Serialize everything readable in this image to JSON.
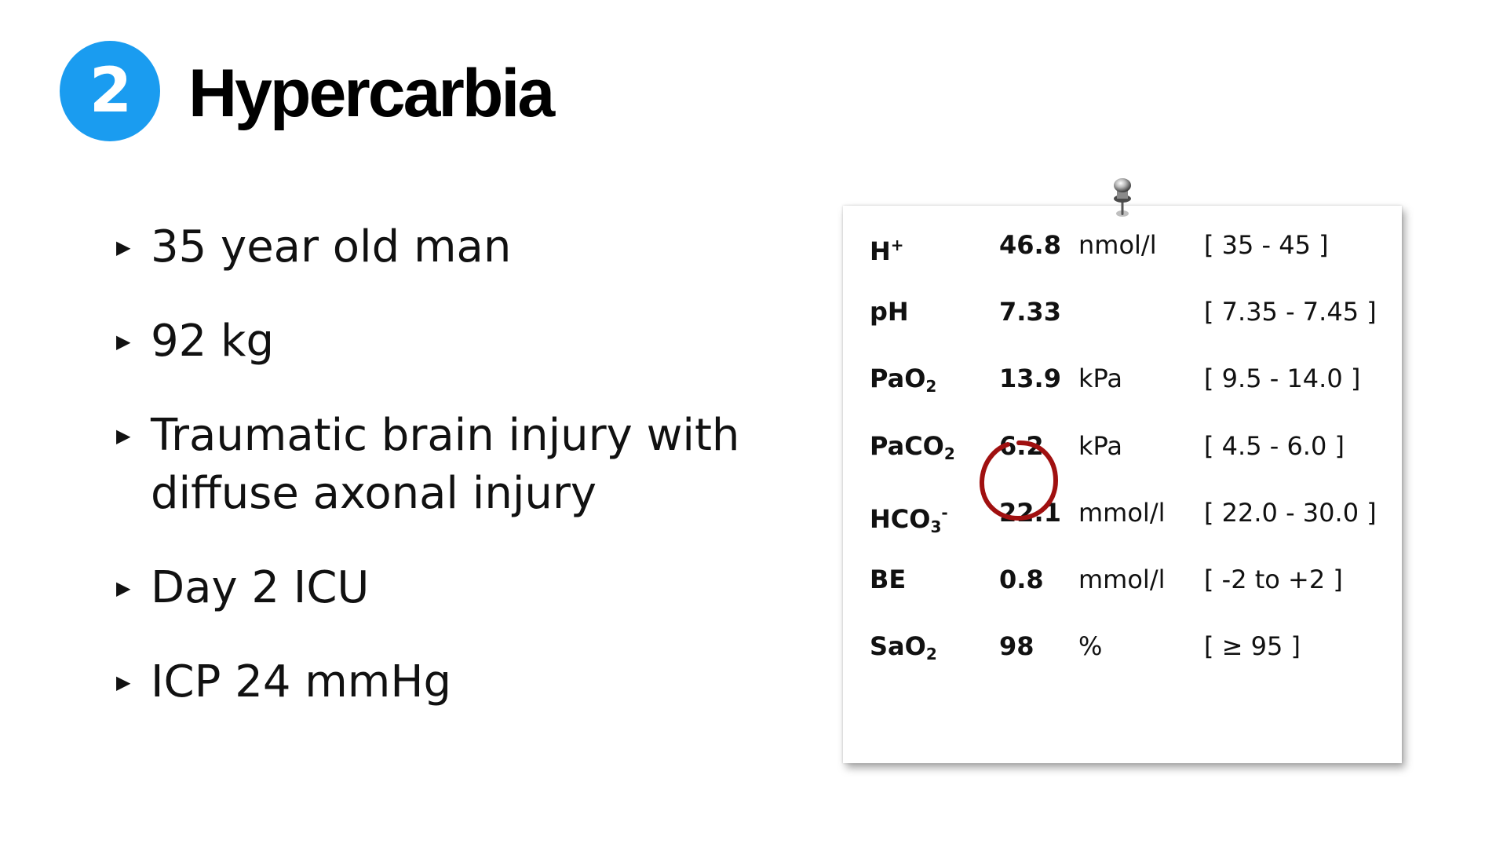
{
  "header": {
    "number": "2",
    "title": "Hypercarbia"
  },
  "bullets": [
    "35 year old man",
    "92 kg",
    "Traumatic brain injury with diffuse axonal injury",
    "Day 2 ICU",
    "ICP 24 mmHg"
  ],
  "labs": {
    "rows": [
      {
        "name": "H",
        "sup": "+",
        "sub": "",
        "value": "46.8",
        "unit": "nmol/l",
        "range": "[ 35 - 45 ]"
      },
      {
        "name": "pH",
        "sup": "",
        "sub": "",
        "value": "7.33",
        "unit": "",
        "range": "[ 7.35 - 7.45 ]"
      },
      {
        "name": "PaO",
        "sup": "",
        "sub": "2",
        "value": "13.9",
        "unit": "kPa",
        "range": "[ 9.5 - 14.0 ]"
      },
      {
        "name": "PaCO",
        "sup": "",
        "sub": "2",
        "value": "6.2",
        "unit": "kPa",
        "range": "[ 4.5 - 6.0 ]"
      },
      {
        "name": "HCO",
        "sup": "-",
        "sub": "3",
        "value": "22.1",
        "unit": "mmol/l",
        "range": "[ 22.0 - 30.0 ]"
      },
      {
        "name": "BE",
        "sup": "",
        "sub": "",
        "value": "0.8",
        "unit": "mmol/l",
        "range": "[ -2 to +2 ]"
      },
      {
        "name": "SaO",
        "sup": "",
        "sub": "2",
        "value": "98",
        "unit": "%",
        "range": "[ ≥ 95 ]"
      }
    ],
    "highlighted_row": 3,
    "highlight_color": "#a01010"
  },
  "colors": {
    "badge": "#1a9cf0"
  }
}
